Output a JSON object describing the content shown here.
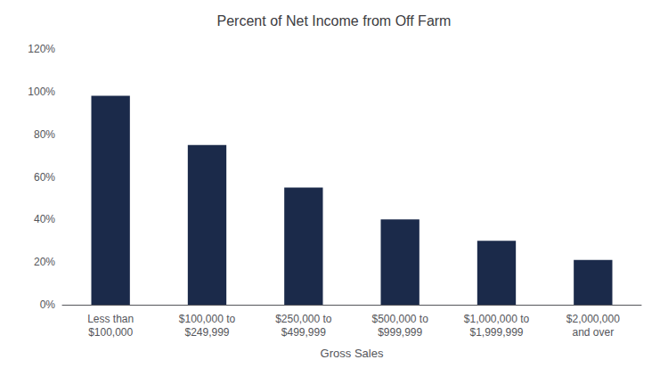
{
  "chart_data": {
    "type": "bar",
    "title": "Percent of Net Income from Off Farm",
    "xlabel": "Gross Sales",
    "categories": [
      "Less than\n$100,000",
      "$100,000 to\n$249,999",
      "$250,000 to\n$499,999",
      "$500,000 to\n$999,999",
      "$1,000,000 to\n$1,999,999",
      "$2,000,000\nand over"
    ],
    "values": [
      0.98,
      0.75,
      0.55,
      0.4,
      0.3,
      0.21
    ],
    "color": "#1B2A4A",
    "ylim": [
      0,
      1.2
    ],
    "yticks": [
      {
        "value": 0.0,
        "label": "0%"
      },
      {
        "value": 0.2,
        "label": "20%"
      },
      {
        "value": 0.4,
        "label": "40%"
      },
      {
        "value": 0.6,
        "label": "60%"
      },
      {
        "value": 0.8,
        "label": "80%"
      },
      {
        "value": 1.0,
        "label": "100%"
      },
      {
        "value": 1.2,
        "label": "120%"
      }
    ],
    "grid": false
  }
}
